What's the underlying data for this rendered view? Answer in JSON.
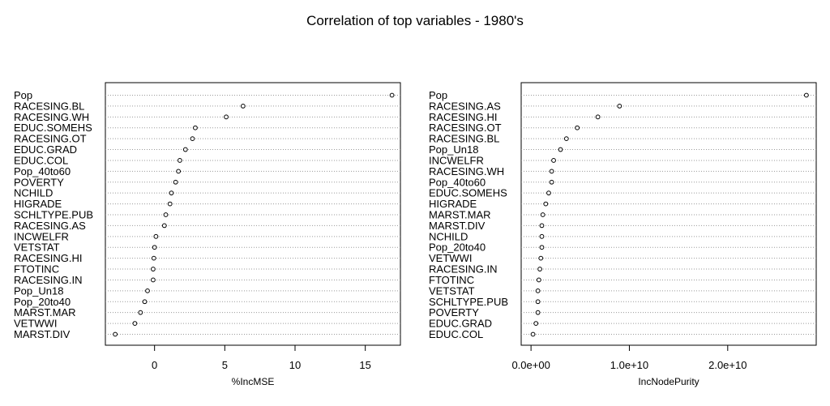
{
  "title": "Correlation of top variables - 1980's",
  "chart_data": [
    {
      "type": "dotchart",
      "xlabel": "%IncMSE",
      "ylabel": "",
      "xlim": [
        -3.5,
        17.5
      ],
      "xticks": [
        0,
        5,
        10,
        15
      ],
      "xtick_labels": [
        "0",
        "5",
        "10",
        "15"
      ],
      "grid": "dotted horizontal lines per category",
      "categories": [
        "Pop",
        "RACESING.BL",
        "RACESING.WH",
        "EDUC.SOMEHS",
        "RACESING.OT",
        "EDUC.GRAD",
        "EDUC.COL",
        "Pop_40to60",
        "POVERTY",
        "NCHILD",
        "HIGRADE",
        "SCHLTYPE.PUB",
        "RACESING.AS",
        "INCWELFR",
        "VETSTAT",
        "RACESING.HI",
        "FTOTINC",
        "RACESING.IN",
        "Pop_Un18",
        "Pop_20to40",
        "MARST.MAR",
        "VETWWI",
        "MARST.DIV"
      ],
      "values": [
        16.9,
        6.3,
        5.1,
        2.9,
        2.7,
        2.2,
        1.8,
        1.7,
        1.5,
        1.2,
        1.1,
        0.8,
        0.7,
        0.1,
        0.0,
        -0.05,
        -0.1,
        -0.1,
        -0.5,
        -0.7,
        -1.0,
        -1.4,
        -2.8
      ]
    },
    {
      "type": "dotchart",
      "xlabel": "IncNodePurity",
      "ylabel": "",
      "xlim": [
        -1000000000,
        29000000000
      ],
      "xticks": [
        0,
        10000000000,
        20000000000
      ],
      "xtick_labels": [
        "0.0e+00",
        "1.0e+10",
        "2.0e+10"
      ],
      "grid": "dotted horizontal lines per category",
      "categories": [
        "Pop",
        "RACESING.AS",
        "RACESING.HI",
        "RACESING.OT",
        "RACESING.BL",
        "Pop_Un18",
        "INCWELFR",
        "RACESING.WH",
        "Pop_40to60",
        "EDUC.SOMEHS",
        "HIGRADE",
        "MARST.MAR",
        "MARST.DIV",
        "NCHILD",
        "Pop_20to40",
        "VETWWI",
        "RACESING.IN",
        "FTOTINC",
        "VETSTAT",
        "SCHLTYPE.PUB",
        "POVERTY",
        "EDUC.GRAD",
        "EDUC.COL"
      ],
      "values": [
        28000000000,
        9000000000,
        6800000000,
        4700000000,
        3600000000,
        3000000000,
        2300000000,
        2100000000,
        2100000000,
        1800000000,
        1500000000,
        1200000000,
        1100000000,
        1100000000,
        1100000000,
        1000000000,
        900000000,
        800000000,
        700000000,
        700000000,
        700000000,
        500000000,
        200000000
      ]
    }
  ]
}
